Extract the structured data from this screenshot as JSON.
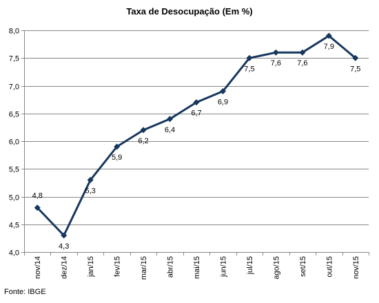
{
  "chart_data": {
    "type": "line",
    "title": "Taxa de Desocupação (Em %)",
    "source": "Fonte: IBGE",
    "categories": [
      "nov/14",
      "dez/14",
      "jan/15",
      "fev/15",
      "mar/15",
      "abr/15",
      "mai/15",
      "jun/15",
      "jul/15",
      "ago/15",
      "set/15",
      "out/15",
      "nov/15"
    ],
    "values": [
      4.8,
      4.3,
      5.3,
      5.9,
      6.2,
      6.4,
      6.7,
      6.9,
      7.5,
      7.6,
      7.6,
      7.9,
      7.5
    ],
    "value_labels": [
      "4,8",
      "4,3",
      "5,3",
      "5,9",
      "6,2",
      "6,4",
      "6,7",
      "6,9",
      "7,5",
      "7,6",
      "7,6",
      "7,9",
      "7,5"
    ],
    "ylim": [
      4.0,
      8.0
    ],
    "yticks": [
      "4,0",
      "4,5",
      "5,0",
      "5,5",
      "6,0",
      "6,5",
      "7,0",
      "7,5",
      "8,0"
    ],
    "ytick_values": [
      4.0,
      4.5,
      5.0,
      5.5,
      6.0,
      6.5,
      7.0,
      7.5,
      8.0
    ],
    "grid": true,
    "line_color": "#17375E",
    "grid_color": "#868686"
  }
}
